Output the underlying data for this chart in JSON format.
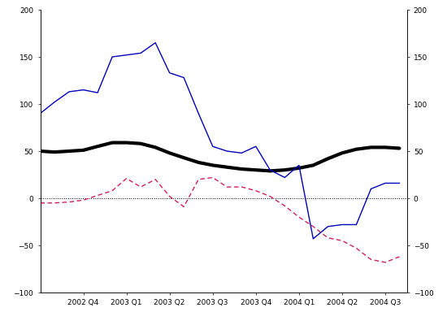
{
  "x_labels": [
    "2002 Q4",
    "2003 Q1",
    "2003 Q2",
    "2003 Q3",
    "2003 Q4",
    "2004 Q1",
    "2004 Q2",
    "2004 Q3"
  ],
  "x_tick_positions": [
    1,
    2,
    3,
    4,
    5,
    6,
    7,
    8
  ],
  "xlim": [
    0,
    8.5
  ],
  "ylim": [
    -100,
    200
  ],
  "yticks": [
    -100,
    -50,
    0,
    50,
    100,
    150,
    200
  ],
  "current_account": {
    "x": [
      0.0,
      0.33,
      0.67,
      1.0,
      1.33,
      1.67,
      2.0,
      2.33,
      2.67,
      3.0,
      3.33,
      3.67,
      4.0,
      4.33,
      4.67,
      5.0,
      5.33,
      5.67,
      6.0,
      6.33,
      6.67,
      7.0,
      7.33,
      7.67,
      8.0,
      8.33
    ],
    "y": [
      50,
      49,
      50,
      51,
      55,
      59,
      59,
      58,
      54,
      48,
      43,
      38,
      35,
      33,
      31,
      30,
      29,
      30,
      32,
      35,
      42,
      48,
      52,
      54,
      54,
      53
    ],
    "color": "#000000",
    "linewidth": 3.0,
    "linestyle": "solid"
  },
  "direct_investment": {
    "x": [
      0.0,
      0.33,
      0.67,
      1.0,
      1.33,
      1.67,
      2.0,
      2.33,
      2.67,
      3.0,
      3.33,
      3.67,
      4.0,
      4.33,
      4.67,
      5.0,
      5.33,
      5.67,
      6.0,
      6.33,
      6.67,
      7.0,
      7.33,
      7.67,
      8.0,
      8.33
    ],
    "y": [
      90,
      102,
      113,
      115,
      112,
      150,
      152,
      154,
      165,
      133,
      128,
      90,
      55,
      50,
      48,
      55,
      30,
      22,
      35,
      -43,
      -30,
      -28,
      -28,
      10,
      16,
      16
    ],
    "color": "#0000bb",
    "linewidth": 1.0,
    "linestyle": "solid"
  },
  "portfolio_investment": {
    "x": [
      0.0,
      0.33,
      0.67,
      1.0,
      1.33,
      1.67,
      2.0,
      2.33,
      2.67,
      3.0,
      3.33,
      3.67,
      4.0,
      4.33,
      4.67,
      5.0,
      5.33,
      5.67,
      6.0,
      6.33,
      6.67,
      7.0,
      7.33,
      7.67,
      8.0,
      8.33
    ],
    "y": [
      -5,
      -5,
      -4,
      -2,
      3,
      8,
      21,
      12,
      20,
      2,
      -9,
      20,
      22,
      12,
      12,
      8,
      2,
      -8,
      -20,
      -30,
      -42,
      -45,
      -53,
      -65,
      -68,
      -62
    ],
    "color": "#cc2255",
    "linewidth": 1.0,
    "linestyle": "dashed"
  },
  "zero_line": {
    "color": "#000000",
    "linewidth": 0.7,
    "linestyle": "dotted"
  },
  "background_color": "#ffffff",
  "tick_fontsize": 6.5,
  "spine_linewidth": 0.5
}
